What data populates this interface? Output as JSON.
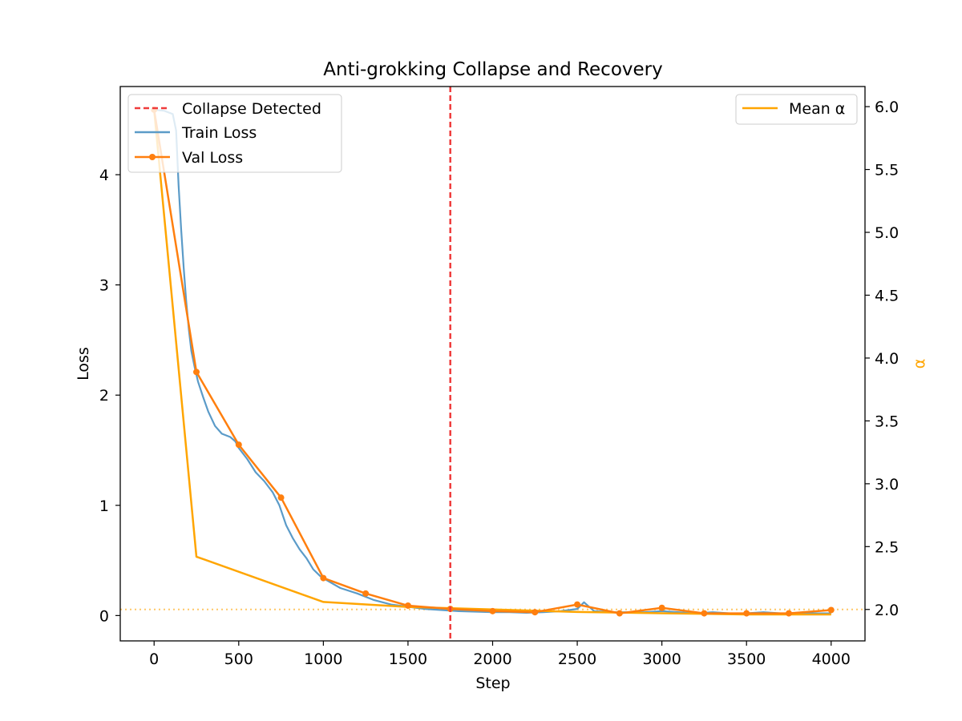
{
  "chart_data": {
    "type": "line",
    "title": "Anti-grokking Collapse and Recovery",
    "xlabel": "Step",
    "ylabel": "Loss",
    "y2label": "α",
    "xlim": [
      -200,
      4200
    ],
    "ylim": [
      -0.23,
      4.8
    ],
    "y2lim": [
      1.75,
      6.16
    ],
    "xticks": [
      0,
      500,
      1000,
      1500,
      2000,
      2500,
      3000,
      3500,
      4000
    ],
    "yticks": [
      0,
      1,
      2,
      3,
      4
    ],
    "y2ticks": [
      2.0,
      2.5,
      3.0,
      3.5,
      4.0,
      4.5,
      5.0,
      5.5,
      6.0
    ],
    "grid": false,
    "colors": {
      "train": "#5b9bc8",
      "val": "#ff7f0e",
      "alpha": "#ffa500",
      "collapse": "#ef3b3b",
      "alpha_ref": "#ffc766",
      "y2label": "#ffa500"
    },
    "collapse_step": 1750,
    "alpha_reference": 2.0,
    "legend_left": {
      "placement": "upper-left",
      "entries": [
        "Collapse Detected",
        "Train Loss",
        "Val Loss"
      ]
    },
    "legend_right": {
      "placement": "upper-right",
      "entries": [
        "Mean α"
      ]
    },
    "series": [
      {
        "name": "Train Loss",
        "axis": "left",
        "x": [
          0,
          60,
          110,
          130,
          145,
          160,
          175,
          190,
          205,
          220,
          240,
          260,
          290,
          320,
          360,
          400,
          450,
          480,
          500,
          550,
          600,
          650,
          700,
          740,
          780,
          820,
          860,
          900,
          940,
          980,
          1020,
          1100,
          1200,
          1300,
          1400,
          1500,
          1600,
          1700,
          1800,
          1900,
          2000,
          2100,
          2200,
          2300,
          2400,
          2450,
          2500,
          2540,
          2600,
          2700,
          2800,
          2900,
          3000,
          3100,
          3200,
          3300,
          3400,
          3500,
          3600,
          3700,
          3800,
          3900,
          4000
        ],
        "y": [
          4.59,
          4.58,
          4.55,
          4.4,
          3.9,
          3.5,
          3.15,
          2.85,
          2.6,
          2.4,
          2.25,
          2.12,
          1.98,
          1.85,
          1.72,
          1.65,
          1.62,
          1.58,
          1.52,
          1.42,
          1.3,
          1.22,
          1.12,
          1.0,
          0.82,
          0.7,
          0.6,
          0.52,
          0.42,
          0.36,
          0.32,
          0.25,
          0.2,
          0.14,
          0.1,
          0.08,
          0.06,
          0.05,
          0.04,
          0.035,
          0.03,
          0.03,
          0.025,
          0.03,
          0.04,
          0.05,
          0.06,
          0.12,
          0.04,
          0.03,
          0.03,
          0.03,
          0.04,
          0.03,
          0.02,
          0.03,
          0.02,
          0.02,
          0.03,
          0.02,
          0.02,
          0.02,
          0.02
        ]
      },
      {
        "name": "Val Loss",
        "axis": "left",
        "x": [
          0,
          250,
          500,
          750,
          1000,
          1250,
          1500,
          1750,
          2000,
          2250,
          2500,
          2750,
          3000,
          3250,
          3500,
          3750,
          4000
        ],
        "y": [
          4.59,
          2.21,
          1.55,
          1.07,
          0.34,
          0.2,
          0.09,
          0.06,
          0.04,
          0.03,
          0.1,
          0.02,
          0.07,
          0.02,
          0.02,
          0.02,
          0.05
        ]
      },
      {
        "name": "Mean α",
        "axis": "right",
        "x": [
          0,
          250,
          1000,
          1500,
          2000,
          2500,
          3000,
          3500,
          4000
        ],
        "y": [
          5.98,
          2.42,
          2.06,
          2.02,
          2.0,
          1.98,
          1.97,
          1.96,
          1.96
        ]
      }
    ]
  }
}
